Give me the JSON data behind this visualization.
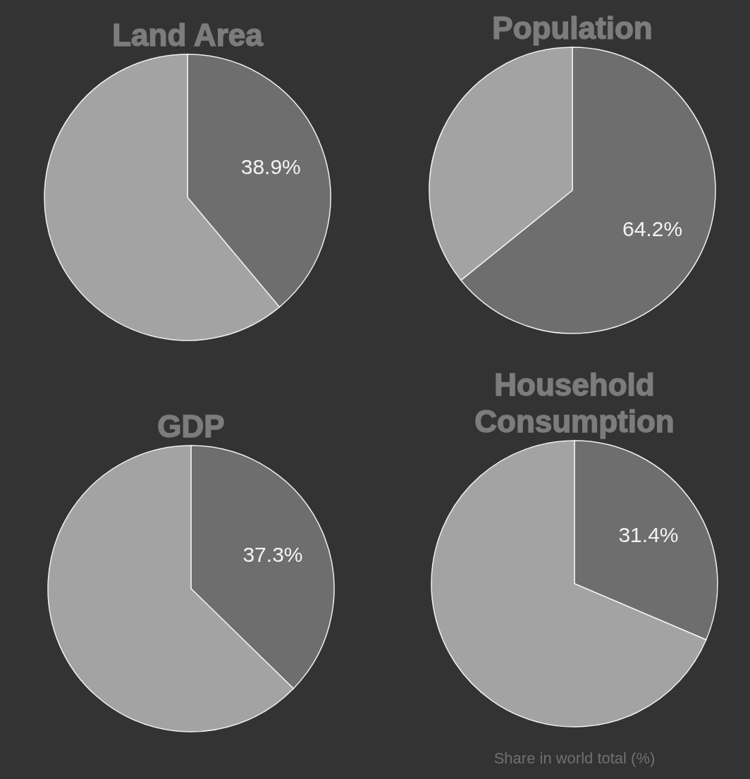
{
  "chart_data": [
    {
      "type": "pie",
      "title": "Land Area",
      "categories": [
        null,
        null
      ],
      "values": [
        38.9,
        61.1
      ],
      "colors": [
        "#6e6e6e",
        "#a3a3a3"
      ],
      "value_labels": [
        "38.9%",
        null
      ]
    },
    {
      "type": "pie",
      "title": "Population",
      "categories": [
        null,
        null
      ],
      "values": [
        64.2,
        35.8
      ],
      "colors": [
        "#6e6e6e",
        "#a3a3a3"
      ],
      "value_labels": [
        "64.2%",
        null
      ]
    },
    {
      "type": "pie",
      "title": "GDP",
      "categories": [
        null,
        null
      ],
      "values": [
        37.3,
        62.7
      ],
      "colors": [
        "#6e6e6e",
        "#a3a3a3"
      ],
      "value_labels": [
        "37.3%",
        null
      ]
    },
    {
      "type": "pie",
      "title": "Household Consumption",
      "categories": [
        null,
        null
      ],
      "values": [
        31.4,
        68.6
      ],
      "colors": [
        "#6e6e6e",
        "#a3a3a3"
      ],
      "value_labels": [
        "31.4%",
        null
      ],
      "annotations": [
        "Share in world total (%)"
      ]
    }
  ]
}
